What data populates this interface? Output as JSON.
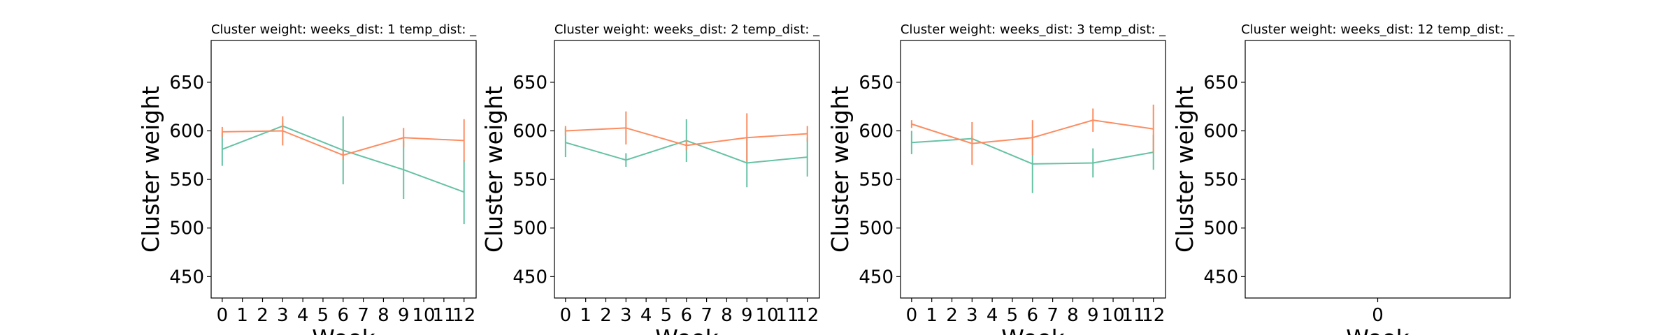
{
  "chart_data": [
    {
      "type": "line",
      "title": "Cluster weight:  weeks_dist: 1  temp_dist: _",
      "x_label": "Week",
      "y_label": "Cluster weight",
      "xlim": [
        -0.55,
        12.6
      ],
      "xticks": [
        0,
        1,
        2,
        3,
        4,
        5,
        6,
        7,
        8,
        9,
        10,
        11,
        12
      ],
      "ylim": [
        428,
        693
      ],
      "yticks": [
        450,
        500,
        550,
        600,
        650
      ],
      "series": [
        {
          "color": "#66c2a5",
          "x": [
            0,
            3,
            6,
            9,
            12
          ],
          "values": [
            581,
            605,
            580,
            560,
            537
          ],
          "errors": [
            17,
            3,
            35,
            30,
            33
          ]
        },
        {
          "color": "#fc8d62",
          "x": [
            0,
            3,
            6,
            9,
            12
          ],
          "values": [
            599,
            600,
            575,
            593,
            590
          ],
          "errors": [
            5,
            15,
            5,
            10,
            22
          ]
        }
      ]
    },
    {
      "type": "line",
      "title": "Cluster weight:  weeks_dist: 2  temp_dist: _",
      "x_label": "Week",
      "y_label": "Cluster weight",
      "xlim": [
        -0.55,
        12.6
      ],
      "xticks": [
        0,
        1,
        2,
        3,
        4,
        5,
        6,
        7,
        8,
        9,
        10,
        11,
        12
      ],
      "ylim": [
        428,
        693
      ],
      "yticks": [
        450,
        500,
        550,
        600,
        650
      ],
      "series": [
        {
          "color": "#66c2a5",
          "x": [
            0,
            3,
            6,
            9,
            12
          ],
          "values": [
            588,
            570,
            590,
            567,
            573
          ],
          "errors": [
            15,
            7,
            22,
            25,
            20
          ]
        },
        {
          "color": "#fc8d62",
          "x": [
            0,
            3,
            6,
            9,
            12
          ],
          "values": [
            600,
            603,
            585,
            593,
            597
          ],
          "errors": [
            5,
            17,
            5,
            25,
            8
          ]
        }
      ]
    },
    {
      "type": "line",
      "title": "Cluster weight:  weeks_dist: 3  temp_dist: _",
      "x_label": "Week",
      "y_label": "Cluster weight",
      "xlim": [
        -0.55,
        12.6
      ],
      "xticks": [
        0,
        1,
        2,
        3,
        4,
        5,
        6,
        7,
        8,
        9,
        10,
        11,
        12
      ],
      "ylim": [
        428,
        693
      ],
      "yticks": [
        450,
        500,
        550,
        600,
        650
      ],
      "series": [
        {
          "color": "#66c2a5",
          "x": [
            0,
            3,
            6,
            9,
            12
          ],
          "values": [
            588,
            592,
            566,
            567,
            578
          ],
          "errors": [
            12,
            3,
            30,
            15,
            18
          ]
        },
        {
          "color": "#fc8d62",
          "x": [
            0,
            3,
            6,
            9,
            12
          ],
          "values": [
            607,
            587,
            593,
            611,
            602
          ],
          "errors": [
            4,
            22,
            18,
            12,
            25
          ]
        }
      ]
    },
    {
      "type": "line",
      "title": "Cluster weight:  weeks_dist: 12  temp_dist: _",
      "x_label": "Week",
      "y_label": "Cluster weight",
      "xlim": [
        -0.5,
        0.5
      ],
      "xticks": [
        0
      ],
      "ylim": [
        428,
        693
      ],
      "yticks": [
        450,
        500,
        550,
        600,
        650
      ],
      "series": []
    }
  ]
}
